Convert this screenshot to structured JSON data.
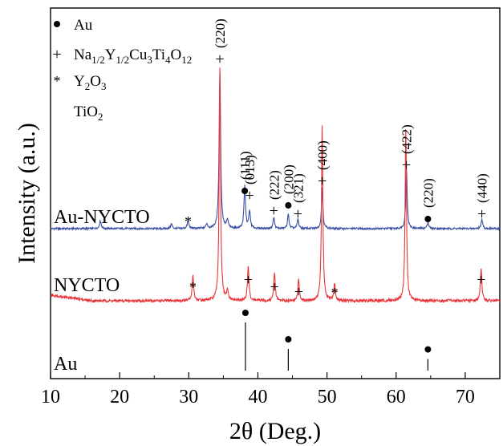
{
  "chart_data": {
    "type": "line",
    "title": "",
    "xlabel": "2θ (Deg.)",
    "ylabel": "Intensity (a.u.)",
    "xlim": [
      10,
      75
    ],
    "xticks": [
      10,
      20,
      30,
      40,
      50,
      60,
      70
    ],
    "grid": false,
    "y_ticks_shown": false,
    "legend": {
      "placement": "top-left",
      "entries": [
        {
          "marker": "●",
          "text": "Au"
        },
        {
          "marker": "+",
          "text": "Na",
          "sub1": "1/2",
          "mid": "Y",
          "sub2": "1/2",
          "tail": "Cu",
          "sub3": "3",
          "tail2": "Ti",
          "sub4": "4",
          "tail3": "O",
          "sub5": "12"
        },
        {
          "marker": "*",
          "text": "Y",
          "sub1": "2",
          "mid": "O",
          "sub2": "3"
        },
        {
          "marker": "",
          "text": "TiO",
          "sub1": "2"
        }
      ]
    },
    "series": [
      {
        "name": "Au-NYCTO",
        "color": "#3a4fa3",
        "peaks": [
          {
            "x": 17.2,
            "h": 0.05,
            "w": 0.14
          },
          {
            "x": 27.5,
            "h": 0.03,
            "w": 0.14
          },
          {
            "x": 29.9,
            "h": 0.05,
            "w": 0.14
          },
          {
            "x": 32.6,
            "h": 0.03,
            "w": 0.14
          },
          {
            "x": 34.5,
            "h": 1.0,
            "w": 0.13
          },
          {
            "x": 35.6,
            "h": 0.05,
            "w": 0.14
          },
          {
            "x": 38.1,
            "h": 0.27,
            "w": 0.13
          },
          {
            "x": 38.8,
            "h": 0.11,
            "w": 0.13
          },
          {
            "x": 42.3,
            "h": 0.07,
            "w": 0.13
          },
          {
            "x": 44.4,
            "h": 0.09,
            "w": 0.13
          },
          {
            "x": 45.8,
            "h": 0.06,
            "w": 0.13
          },
          {
            "x": 49.3,
            "h": 0.26,
            "w": 0.12
          },
          {
            "x": 61.5,
            "h": 0.38,
            "w": 0.12
          },
          {
            "x": 64.6,
            "h": 0.04,
            "w": 0.14
          },
          {
            "x": 72.4,
            "h": 0.06,
            "w": 0.13
          }
        ],
        "labels": [
          {
            "x": 34.5,
            "sym": "+",
            "text": "(220)"
          },
          {
            "x": 38.1,
            "sym": "●",
            "text": "(111)"
          },
          {
            "x": 38.8,
            "sym": "+",
            "text": "(013)"
          },
          {
            "x": 42.3,
            "sym": "+",
            "text": "(222)"
          },
          {
            "x": 44.4,
            "sym": "●",
            "text": "(200)"
          },
          {
            "x": 45.8,
            "sym": "+",
            "text": "(321)"
          },
          {
            "x": 49.3,
            "sym": "+",
            "text": "(400)"
          },
          {
            "x": 61.5,
            "sym": "+",
            "text": "(422)"
          },
          {
            "x": 64.6,
            "sym": "●",
            "text": "(220)"
          },
          {
            "x": 72.4,
            "sym": "+",
            "text": "(440)"
          },
          {
            "x": 29.9,
            "sym": "*",
            "text": ""
          }
        ]
      },
      {
        "name": "NYCTO",
        "color": "#e8363a",
        "peaks": [
          {
            "x": 30.6,
            "h": 0.11,
            "w": 0.13
          },
          {
            "x": 34.5,
            "h": 1.0,
            "w": 0.12
          },
          {
            "x": 35.6,
            "h": 0.04,
            "w": 0.14
          },
          {
            "x": 38.6,
            "h": 0.15,
            "w": 0.13
          },
          {
            "x": 42.4,
            "h": 0.12,
            "w": 0.13
          },
          {
            "x": 45.9,
            "h": 0.09,
            "w": 0.13
          },
          {
            "x": 49.3,
            "h": 0.75,
            "w": 0.12
          },
          {
            "x": 51.1,
            "h": 0.07,
            "w": 0.13
          },
          {
            "x": 61.4,
            "h": 0.74,
            "w": 0.12
          },
          {
            "x": 72.3,
            "h": 0.14,
            "w": 0.13
          }
        ],
        "labels": [
          {
            "x": 30.6,
            "sym": "*"
          },
          {
            "x": 38.6,
            "sym": "+"
          },
          {
            "x": 42.4,
            "sym": "+"
          },
          {
            "x": 45.9,
            "sym": "+"
          },
          {
            "x": 51.1,
            "sym": "*"
          },
          {
            "x": 72.3,
            "sym": "+"
          }
        ]
      },
      {
        "name": "Au",
        "color": "#000000",
        "type": "stick",
        "sticks": [
          {
            "x": 38.2,
            "h": 1.0
          },
          {
            "x": 44.4,
            "h": 0.45
          },
          {
            "x": 64.6,
            "h": 0.24
          }
        ]
      }
    ]
  }
}
